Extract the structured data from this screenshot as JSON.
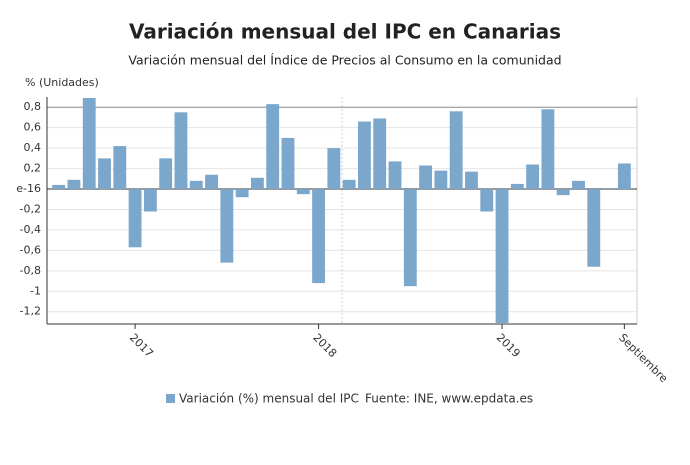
{
  "chart_data": {
    "type": "bar",
    "title": "Variación mensual del IPC en Canarias",
    "subtitle": "Variación mensual del Índice de Precios al Consumo en la comunidad",
    "y_axis_label": "% (Unidades)",
    "source": "Fuente: INE, www.epdata.es",
    "categories": [
      null,
      null,
      null,
      null,
      null,
      "2017",
      null,
      null,
      null,
      null,
      null,
      null,
      null,
      null,
      null,
      null,
      null,
      "2018",
      null,
      null,
      null,
      null,
      null,
      null,
      null,
      null,
      null,
      null,
      null,
      "2019",
      null,
      null,
      null,
      null,
      null,
      null,
      null,
      "Septiembre"
    ],
    "series": [
      {
        "name": "Variación (%) mensual del IPC",
        "color": "#7aa7cb",
        "values": [
          0.04,
          0.09,
          0.89,
          0.3,
          0.42,
          -0.57,
          -0.22,
          0.3,
          0.75,
          0.08,
          0.14,
          -0.72,
          -0.08,
          0.11,
          0.83,
          0.5,
          -0.05,
          -0.92,
          0.4,
          0.09,
          0.66,
          0.69,
          0.27,
          -0.95,
          0.23,
          0.18,
          0.76,
          0.17,
          -0.22,
          -1.31,
          0.05,
          0.24,
          0.78,
          -0.06,
          0.08,
          -0.76,
          0.01,
          0.25
        ]
      }
    ],
    "ylim": [
      -1.32,
      0.9
    ],
    "yticks": [
      {
        "value": 0.8,
        "label": "0,8"
      },
      {
        "value": 0.6,
        "label": "0,6"
      },
      {
        "value": 0.4,
        "label": "0,4"
      },
      {
        "value": 0.2,
        "label": "0,2"
      },
      {
        "value": 0,
        "label": "e-16"
      },
      {
        "value": -0.2,
        "label": "-0,2"
      },
      {
        "value": -0.4,
        "label": "-0,4"
      },
      {
        "value": -0.6,
        "label": "-0,6"
      },
      {
        "value": -0.8,
        "label": "-0,8"
      },
      {
        "value": -1,
        "label": "-1"
      },
      {
        "value": -1.2,
        "label": "-1,2"
      }
    ],
    "grid": true
  }
}
